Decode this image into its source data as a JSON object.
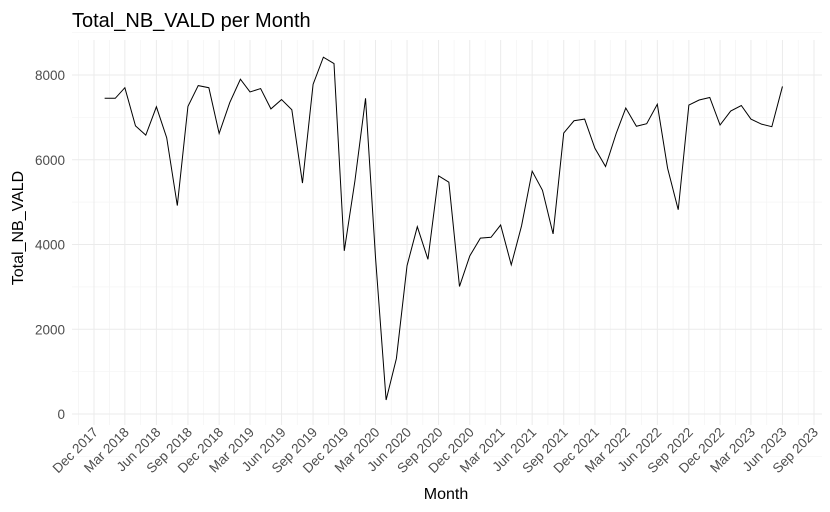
{
  "chart_data": {
    "type": "line",
    "title": "Total_NB_VALD per Month",
    "xlabel": "Month",
    "ylabel": "Total_NB_VALD",
    "ylim": [
      0,
      8800
    ],
    "grid": true,
    "legend": "none",
    "line_color": "#000000",
    "y_ticks": [
      0,
      2000,
      4000,
      6000,
      8000
    ],
    "x_ticks": [
      {
        "date": "2017-12-01",
        "label": "Dec 2017"
      },
      {
        "date": "2018-03-01",
        "label": "Mar 2018"
      },
      {
        "date": "2018-06-01",
        "label": "Jun 2018"
      },
      {
        "date": "2018-09-01",
        "label": "Sep 2018"
      },
      {
        "date": "2018-12-01",
        "label": "Dec 2018"
      },
      {
        "date": "2019-03-01",
        "label": "Mar 2019"
      },
      {
        "date": "2019-06-01",
        "label": "Jun 2019"
      },
      {
        "date": "2019-09-01",
        "label": "Sep 2019"
      },
      {
        "date": "2019-12-01",
        "label": "Dec 2019"
      },
      {
        "date": "2020-03-01",
        "label": "Mar 2020"
      },
      {
        "date": "2020-06-01",
        "label": "Jun 2020"
      },
      {
        "date": "2020-09-01",
        "label": "Sep 2020"
      },
      {
        "date": "2020-12-01",
        "label": "Dec 2020"
      },
      {
        "date": "2021-03-01",
        "label": "Mar 2021"
      },
      {
        "date": "2021-06-01",
        "label": "Jun 2021"
      },
      {
        "date": "2021-09-01",
        "label": "Sep 2021"
      },
      {
        "date": "2021-12-01",
        "label": "Dec 2021"
      },
      {
        "date": "2022-03-01",
        "label": "Mar 2022"
      },
      {
        "date": "2022-06-01",
        "label": "Jun 2022"
      },
      {
        "date": "2022-09-01",
        "label": "Sep 2022"
      },
      {
        "date": "2022-12-01",
        "label": "Dec 2022"
      },
      {
        "date": "2023-03-01",
        "label": "Mar 2023"
      },
      {
        "date": "2023-06-01",
        "label": "Jun 2023"
      },
      {
        "date": "2023-09-01",
        "label": "Sep 2023"
      }
    ],
    "x": [
      "2018-01-01",
      "2018-02-01",
      "2018-03-01",
      "2018-04-01",
      "2018-05-01",
      "2018-06-01",
      "2018-07-01",
      "2018-08-01",
      "2018-09-01",
      "2018-10-01",
      "2018-11-01",
      "2018-12-01",
      "2019-01-01",
      "2019-02-01",
      "2019-03-01",
      "2019-04-01",
      "2019-05-01",
      "2019-06-01",
      "2019-07-01",
      "2019-08-01",
      "2019-09-01",
      "2019-10-01",
      "2019-11-01",
      "2019-12-01",
      "2020-01-01",
      "2020-02-01",
      "2020-03-01",
      "2020-04-01",
      "2020-05-01",
      "2020-06-01",
      "2020-07-01",
      "2020-08-01",
      "2020-09-01",
      "2020-10-01",
      "2020-11-01",
      "2020-12-01",
      "2021-01-01",
      "2021-02-01",
      "2021-03-01",
      "2021-04-01",
      "2021-05-01",
      "2021-06-01",
      "2021-07-01",
      "2021-08-01",
      "2021-09-01",
      "2021-10-01",
      "2021-11-01",
      "2021-12-01",
      "2022-01-01",
      "2022-02-01",
      "2022-03-01",
      "2022-04-01",
      "2022-05-01",
      "2022-06-01",
      "2022-07-01",
      "2022-08-01",
      "2022-09-01",
      "2022-10-01",
      "2022-11-01",
      "2022-12-01",
      "2023-01-01",
      "2023-02-01",
      "2023-03-01",
      "2023-04-01",
      "2023-05-01",
      "2023-06-01",
      "2023-07-01"
    ],
    "y": [
      7450,
      7450,
      7700,
      6800,
      6580,
      7250,
      6520,
      4920,
      7260,
      7750,
      7700,
      6620,
      7350,
      7900,
      7600,
      7680,
      7200,
      7420,
      7180,
      5450,
      7780,
      8420,
      8270,
      3850,
      5500,
      7450,
      3700,
      330,
      1310,
      3500,
      4420,
      3650,
      5620,
      5470,
      3010,
      3730,
      4150,
      4170,
      4460,
      3520,
      4440,
      5730,
      5280,
      4250,
      6630,
      6920,
      6960,
      6270,
      5840,
      6620,
      7220,
      6790,
      6850,
      7310,
      5800,
      4820,
      7290,
      7410,
      7470,
      6820,
      7150,
      7280,
      6960,
      6840,
      6780,
      7730,
      null
    ]
  }
}
